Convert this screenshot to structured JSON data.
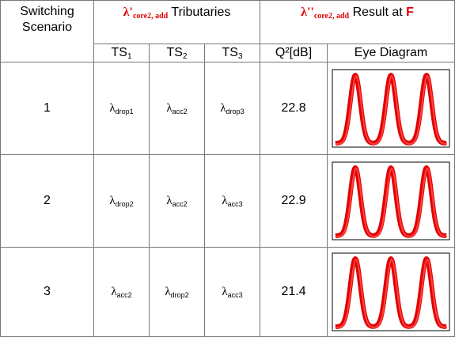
{
  "header": {
    "scenario": "Switching Scenario",
    "tributaries": {
      "symbol": "λ'",
      "sub": "core2, add",
      "text": "Tributaries"
    },
    "result": {
      "symbol": "λ''",
      "sub": "core2, add",
      "text": "Result at",
      "highlight": "F"
    },
    "columns": [
      {
        "base": "TS",
        "sub": "1"
      },
      {
        "base": "TS",
        "sub": "2"
      },
      {
        "base": "TS",
        "sub": "3"
      }
    ],
    "q": "Q²[dB]",
    "eye": "Eye Diagram"
  },
  "rows": [
    {
      "scenario": "1",
      "ts": [
        {
          "base": "λ",
          "sub": "drop1"
        },
        {
          "base": "λ",
          "sub": "acc2"
        },
        {
          "base": "λ",
          "sub": "drop3"
        }
      ],
      "q": "22.8"
    },
    {
      "scenario": "2",
      "ts": [
        {
          "base": "λ",
          "sub": "drop2"
        },
        {
          "base": "λ",
          "sub": "acc2"
        },
        {
          "base": "λ",
          "sub": "acc3"
        }
      ],
      "q": "22.9"
    },
    {
      "scenario": "3",
      "ts": [
        {
          "base": "λ",
          "sub": "acc2"
        },
        {
          "base": "λ",
          "sub": "drop2"
        },
        {
          "base": "λ",
          "sub": "acc3"
        }
      ],
      "q": "21.4"
    }
  ]
}
